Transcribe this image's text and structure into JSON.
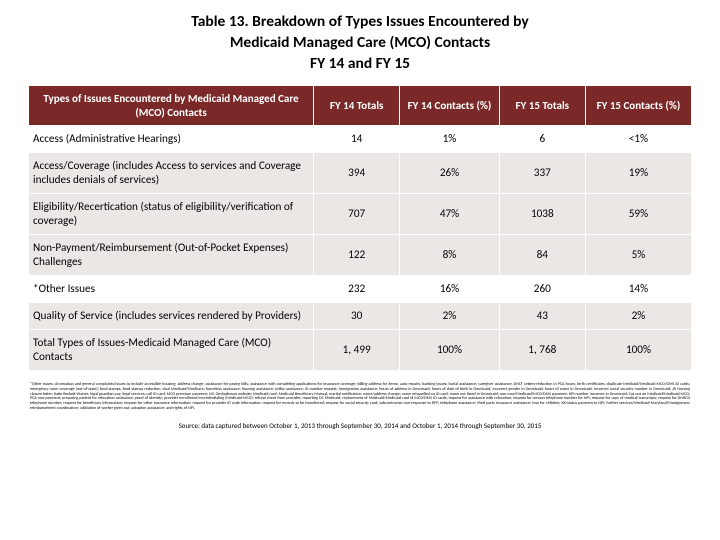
{
  "title": "Table 13. Breakdown of Types Issues Encountered by\nMedicaid Managed Care (MCO) Contacts\nFY 14 and FY 15",
  "columns": {
    "c0": "Types of Issues Encountered by Medicaid Managed Care (MCO) Contacts",
    "c1": "FY 14 Totals",
    "c2": "FY 14 Contacts (%)",
    "c3": "FY 15 Totals",
    "c4": "FY 15 Contacts (%)"
  },
  "rows": [
    {
      "band": "white",
      "label": "Access (Administrative Hearings)",
      "v": [
        "14",
        "1%",
        "6",
        "<1%"
      ]
    },
    {
      "band": "grey",
      "label": "Access/Coverage (includes Access to services and Coverage includes denials of services)",
      "v": [
        "394",
        "26%",
        "337",
        "19%"
      ]
    },
    {
      "band": "grey",
      "label": "Eligibility/Recertication (status of eligibility/verification of coverage)",
      "v": [
        "707",
        "47%",
        "1038",
        "59%"
      ]
    },
    {
      "band": "grey",
      "label": "Non-Payment/Reimbursement (Out-of-Pocket Expenses) Challenges",
      "v": [
        "122",
        "8%",
        "84",
        "5%"
      ]
    },
    {
      "band": "white",
      "label": "*Other Issues",
      "v": [
        "232",
        "16%",
        "260",
        "14%"
      ]
    },
    {
      "band": "grey",
      "label": "Quality of Service (includes services rendered by Providers)",
      "v": [
        "30",
        "2%",
        "43",
        "2%"
      ]
    },
    {
      "band": "grey",
      "label": "Total Types of Issues-Medicaid Managed Care (MCO) Contacts",
      "v": [
        "1, 499",
        "100%",
        "1, 768",
        "100%"
      ]
    }
  ],
  "col_widths": [
    "43%",
    "13%",
    "15%",
    "13%",
    "16%"
  ],
  "colors": {
    "header_bg": "#7b2828",
    "header_fg": "#ffffff",
    "band_grey": "#ebe7e4",
    "band_white": "#ffffff",
    "cell_border": "#ffffff"
  },
  "font_sizes": {
    "title": 15.5,
    "table": 11.2,
    "header": 11,
    "footnote": 4.1,
    "source": 7
  },
  "footnote": "*Other Issues: Anomalous and general complaints/issues to include accessible housing; address change; assistance for paying bills; assistance with completing applications for insurance coverage; billing address for Xerox; auto repairs; banking issues; burial assistance; caregiver assistance; DHCF Letters-reduction in PCA hours; birth certificates; duplicate Medicaid/Medicaid MCO/DMS ID cards; emergency room coverage (out-of-state); food stamps; food stamps reduction; dual Medicaid/Medicare; homeless assistance; housing assistance; utility assistance; ID number request; immigration assistance; hours of address in Ommicaid; hours of date of birth in Ommicaid; Incorrect gender in Ommicaid; hours of name in Ommicaid; Incorrect social security number in Ommicaid; JD Nursing closure letter; Katie Beckett Waiver; legal guardian pay; legal services; call ID card; MCO premium payment; MC Ombudsman website; Medicaid card; Medicaid Beneficiary Manual; marital notification; name/address change; name misspelled on ID card; name not listed in Ommicaid; non-case/Medicaid/MCO/DMS payment; NPI number Incorrect in Ommicaid; Cut out on Medicaid/Medicaid MCO; PCA non-payment; preparing patient for relocation assistance; proof of Identity; provider enrollment/recredentialing (Medicaid-MCO); refund check from provider; reporting DC Medicaid; replacement of Medicaid/Medicaid card id MCO/DMS ID cards; request for assistance with relocation; request for contact telephone number for NPI; request for copy of medical transcripts; request for DHHCD telephone number; request for beneficiary information; request for other insurance information; request for provider ID code information; request for records to be transferred; request for social security card; subcontractor non-response to RFP; telephone assistance; third party insurance assistance; toys for children; KK/status payment to NPI; further services/Medicaid-Maryland/Montgomery reimbursement coordination; validation of worker given out; adoption assistance; and rights of NPI.",
  "source": "Source: data captured between October 1, 2013 through September 30, 2014 and October 1, 2014 through September 30, 2015"
}
